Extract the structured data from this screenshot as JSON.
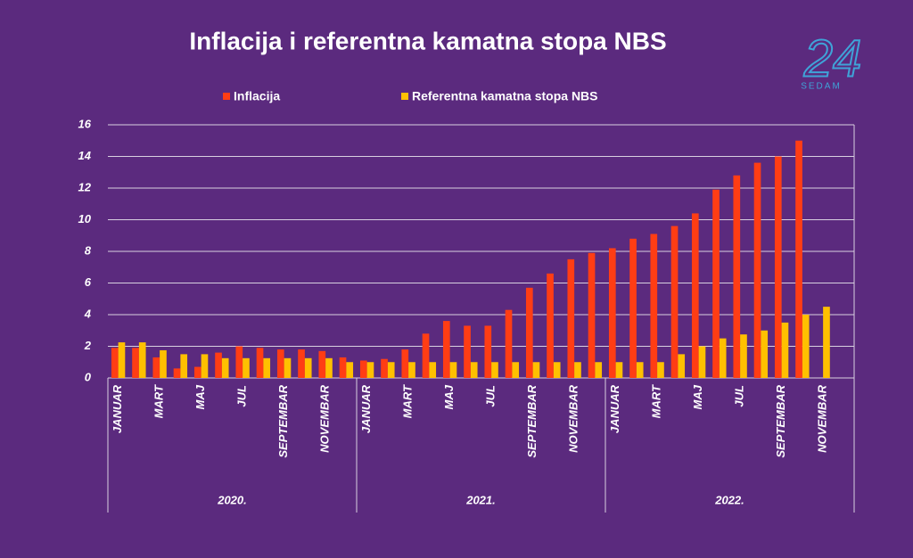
{
  "chart_data": {
    "type": "bar",
    "title": "Inflacija i referentna kamatna stopa NBS",
    "categories": [
      "JANUAR",
      null,
      "MART",
      null,
      "MAJ",
      null,
      "JUL",
      null,
      "SEPTEMBAR",
      null,
      "NOVEMBAR",
      null,
      "JANUAR",
      null,
      "MART",
      null,
      "MAJ",
      null,
      "JUL",
      null,
      "SEPTEMBAR",
      null,
      "NOVEMBAR",
      null,
      "JANUAR",
      null,
      "MART",
      null,
      "MAJ",
      null,
      "JUL",
      null,
      "SEPTEMBAR",
      null,
      "NOVEMBAR",
      null
    ],
    "groups": [
      "2020.",
      "2021.",
      "2022."
    ],
    "series": [
      {
        "name": "Inflacija",
        "color": "#ff3d14",
        "values": [
          1.9,
          1.9,
          1.3,
          0.6,
          0.7,
          1.6,
          2.0,
          1.9,
          1.8,
          1.8,
          1.7,
          1.3,
          1.1,
          1.2,
          1.8,
          2.8,
          3.6,
          3.3,
          3.3,
          4.3,
          5.7,
          6.6,
          7.5,
          7.9,
          8.2,
          8.8,
          9.1,
          9.6,
          10.4,
          11.9,
          12.8,
          13.6,
          14.0,
          15.0,
          null,
          null
        ]
      },
      {
        "name": "Referentna kamatna stopa NBS",
        "color": "#ffc000",
        "values": [
          2.25,
          2.25,
          1.75,
          1.5,
          1.5,
          1.25,
          1.25,
          1.25,
          1.25,
          1.25,
          1.25,
          1.0,
          1.0,
          1.0,
          1.0,
          1.0,
          1.0,
          1.0,
          1.0,
          1.0,
          1.0,
          1.0,
          1.0,
          1.0,
          1.0,
          1.0,
          1.0,
          1.5,
          2.0,
          2.5,
          2.75,
          3.0,
          3.5,
          4.0,
          4.5,
          null
        ]
      }
    ],
    "ylim": [
      0,
      16
    ],
    "yticks": [
      0,
      2,
      4,
      6,
      8,
      10,
      12,
      14,
      16
    ],
    "grid": true,
    "legend": "top"
  },
  "logo": {
    "text": "24",
    "subtext": "SEDAM"
  }
}
